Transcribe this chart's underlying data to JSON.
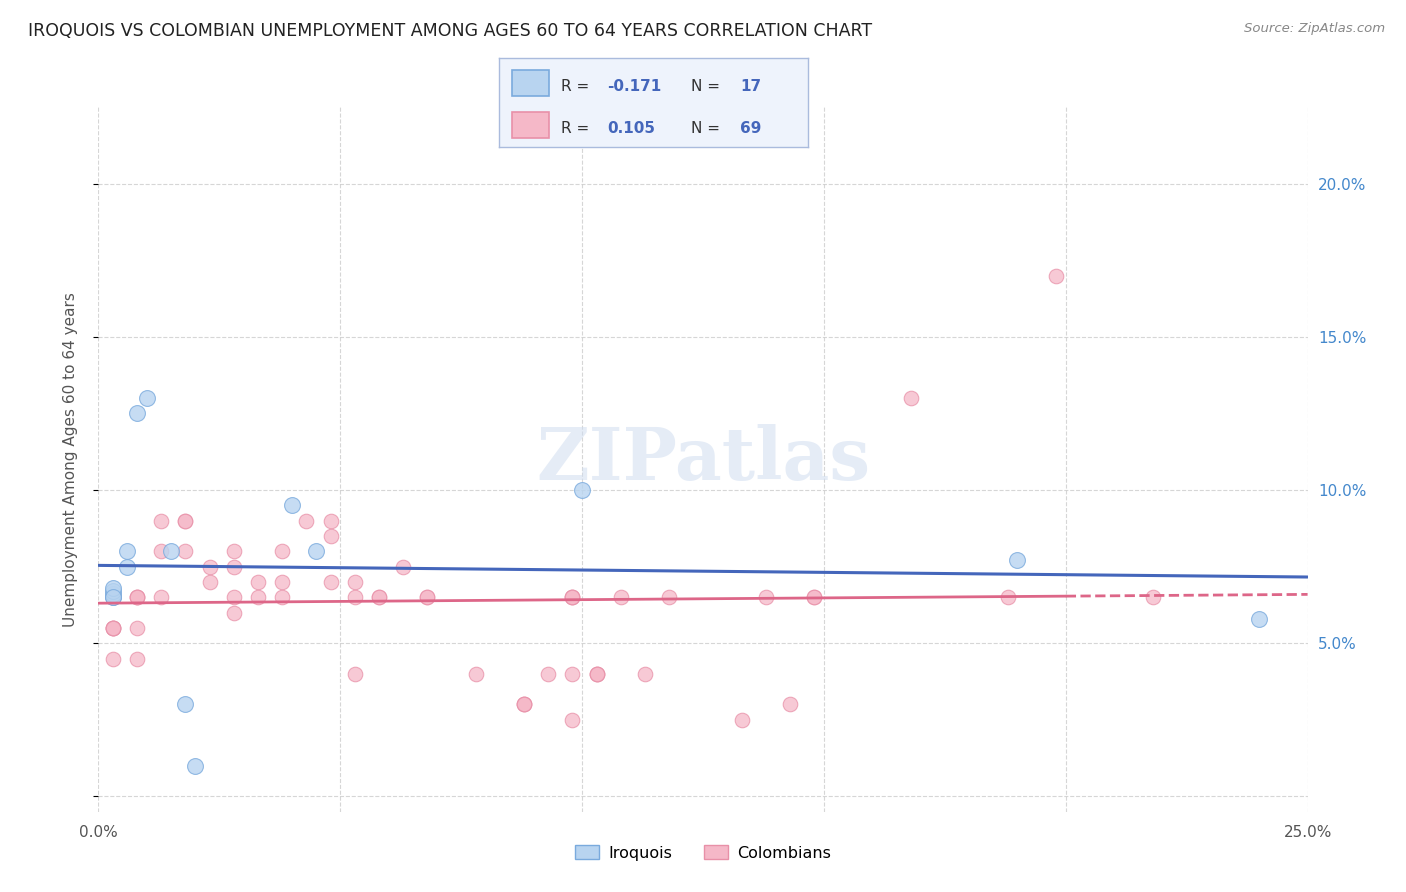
{
  "title": "IROQUOIS VS COLOMBIAN UNEMPLOYMENT AMONG AGES 60 TO 64 YEARS CORRELATION CHART",
  "source": "Source: ZipAtlas.com",
  "ylabel": "Unemployment Among Ages 60 to 64 years",
  "xlim": [
    0.0,
    0.25
  ],
  "ylim": [
    -0.005,
    0.225
  ],
  "xtick_positions": [
    0.0,
    0.05,
    0.1,
    0.15,
    0.2,
    0.25
  ],
  "xticklabels": [
    "0.0%",
    "",
    "",
    "",
    "",
    "25.0%"
  ],
  "ytick_positions": [
    0.0,
    0.05,
    0.1,
    0.15,
    0.2
  ],
  "yticklabels_right": [
    "",
    "5.0%",
    "10.0%",
    "15.0%",
    "20.0%"
  ],
  "background_color": "#ffffff",
  "grid_color": "#cccccc",
  "iroquois_fill": "#b8d4f0",
  "iroquois_edge": "#7aaadd",
  "colombians_fill": "#f5b8c8",
  "colombians_edge": "#e890a8",
  "iroquois_line_color": "#4466bb",
  "colombians_line_color": "#dd6688",
  "legend_bg": "#eef3fc",
  "legend_border": "#aabbdd",
  "iroquois_R": "-0.171",
  "iroquois_N": "17",
  "colombians_R": "0.105",
  "colombians_N": "69",
  "iroquois_x": [
    0.003,
    0.003,
    0.003,
    0.003,
    0.003,
    0.006,
    0.006,
    0.008,
    0.01,
    0.015,
    0.018,
    0.02,
    0.04,
    0.045,
    0.1,
    0.19,
    0.24
  ],
  "iroquois_y": [
    0.065,
    0.066,
    0.067,
    0.068,
    0.065,
    0.075,
    0.08,
    0.125,
    0.13,
    0.08,
    0.03,
    0.01,
    0.095,
    0.08,
    0.1,
    0.077,
    0.058
  ],
  "colombians_x": [
    0.003,
    0.003,
    0.003,
    0.003,
    0.003,
    0.003,
    0.003,
    0.003,
    0.003,
    0.003,
    0.008,
    0.008,
    0.008,
    0.008,
    0.008,
    0.013,
    0.013,
    0.013,
    0.018,
    0.018,
    0.018,
    0.023,
    0.023,
    0.028,
    0.028,
    0.028,
    0.028,
    0.033,
    0.033,
    0.038,
    0.038,
    0.038,
    0.043,
    0.048,
    0.048,
    0.048,
    0.053,
    0.053,
    0.053,
    0.058,
    0.058,
    0.063,
    0.068,
    0.068,
    0.078,
    0.088,
    0.088,
    0.088,
    0.093,
    0.098,
    0.098,
    0.098,
    0.098,
    0.098,
    0.103,
    0.103,
    0.103,
    0.108,
    0.113,
    0.118,
    0.133,
    0.138,
    0.143,
    0.148,
    0.148,
    0.168,
    0.188,
    0.198,
    0.218
  ],
  "colombians_y": [
    0.065,
    0.065,
    0.065,
    0.065,
    0.065,
    0.055,
    0.055,
    0.055,
    0.055,
    0.045,
    0.065,
    0.065,
    0.065,
    0.055,
    0.045,
    0.09,
    0.08,
    0.065,
    0.09,
    0.09,
    0.08,
    0.075,
    0.07,
    0.08,
    0.075,
    0.065,
    0.06,
    0.07,
    0.065,
    0.08,
    0.07,
    0.065,
    0.09,
    0.09,
    0.085,
    0.07,
    0.07,
    0.065,
    0.04,
    0.065,
    0.065,
    0.075,
    0.065,
    0.065,
    0.04,
    0.03,
    0.03,
    0.03,
    0.04,
    0.065,
    0.065,
    0.065,
    0.04,
    0.025,
    0.04,
    0.04,
    0.04,
    0.065,
    0.04,
    0.065,
    0.025,
    0.065,
    0.03,
    0.065,
    0.065,
    0.13,
    0.065,
    0.17,
    0.065
  ]
}
